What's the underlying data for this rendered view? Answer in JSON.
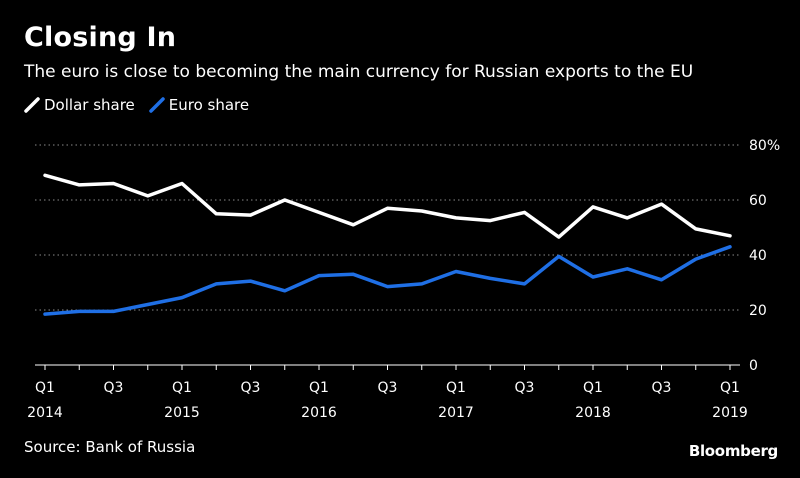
{
  "header": {
    "title": "Closing In",
    "subtitle": "The euro is close to becoming the main currency for Russian exports to the EU"
  },
  "legend": {
    "items": [
      {
        "label": "Dollar share",
        "color": "#ffffff"
      },
      {
        "label": "Euro share",
        "color": "#1f6fe5"
      }
    ]
  },
  "footer": {
    "source": "Source: Bank of Russia",
    "brand": "Bloomberg"
  },
  "chart_data": {
    "type": "line",
    "x": [
      "Q1 2014",
      "Q2 2014",
      "Q3 2014",
      "Q4 2014",
      "Q1 2015",
      "Q2 2015",
      "Q3 2015",
      "Q4 2015",
      "Q1 2016",
      "Q2 2016",
      "Q3 2016",
      "Q4 2016",
      "Q1 2017",
      "Q2 2017",
      "Q3 2017",
      "Q4 2017",
      "Q1 2018",
      "Q2 2018",
      "Q3 2018",
      "Q4 2018",
      "Q1 2019"
    ],
    "series": [
      {
        "name": "Dollar share",
        "color": "#ffffff",
        "values": [
          69,
          65.5,
          66,
          61.5,
          66,
          55,
          54.5,
          60,
          55.5,
          51,
          57,
          56,
          53.5,
          52.5,
          55.5,
          46.5,
          57.5,
          53.5,
          58.5,
          49.5,
          47
        ]
      },
      {
        "name": "Euro share",
        "color": "#1f6fe5",
        "values": [
          18.5,
          19.5,
          19.5,
          22,
          24.5,
          29.5,
          30.5,
          27,
          32.5,
          33,
          28.5,
          29.5,
          34,
          31.5,
          29.5,
          39.5,
          32,
          35,
          31,
          38.5,
          43
        ]
      }
    ],
    "ylim": [
      0,
      80
    ],
    "yticks": [
      {
        "value": 0,
        "label": "0"
      },
      {
        "value": 20,
        "label": "20"
      },
      {
        "value": 40,
        "label": "40"
      },
      {
        "value": 60,
        "label": "60"
      },
      {
        "value": 80,
        "label": "80%"
      }
    ],
    "xticks": [
      {
        "index": 0,
        "top": "Q1",
        "bottom": "2014"
      },
      {
        "index": 2,
        "top": "Q3",
        "bottom": ""
      },
      {
        "index": 4,
        "top": "Q1",
        "bottom": "2015"
      },
      {
        "index": 6,
        "top": "Q3",
        "bottom": ""
      },
      {
        "index": 8,
        "top": "Q1",
        "bottom": "2016"
      },
      {
        "index": 10,
        "top": "Q3",
        "bottom": ""
      },
      {
        "index": 12,
        "top": "Q1",
        "bottom": "2017"
      },
      {
        "index": 14,
        "top": "Q3",
        "bottom": ""
      },
      {
        "index": 16,
        "top": "Q1",
        "bottom": "2018"
      },
      {
        "index": 18,
        "top": "Q3",
        "bottom": ""
      },
      {
        "index": 20,
        "top": "Q1",
        "bottom": "2019"
      }
    ],
    "grid": true,
    "legend_position": "top-left"
  }
}
